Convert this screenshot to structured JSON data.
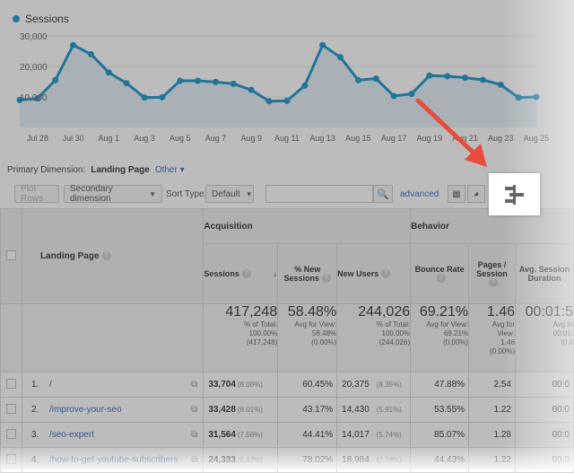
{
  "chart_data": {
    "type": "area",
    "series": [
      {
        "name": "Sessions",
        "values": [
          9000,
          9500,
          15500,
          27000,
          24000,
          18000,
          14500,
          9800,
          9900,
          15300,
          15300,
          14900,
          14300,
          12300,
          8600,
          8700,
          13700,
          27000,
          23000,
          15500,
          16000,
          10300,
          11000,
          17000,
          16800,
          16300,
          15600,
          14000,
          9800,
          10000
        ]
      }
    ],
    "x_ticks": [
      "Jul 28",
      "Jul 30",
      "Aug 1",
      "Aug 3",
      "Aug 5",
      "Aug 7",
      "Aug 9",
      "Aug 11",
      "Aug 13",
      "Aug 15",
      "Aug 17",
      "Aug 19",
      "Aug 21",
      "Aug 23",
      "Aug 25"
    ],
    "y_ticks": [
      "30,000",
      "20,000",
      "10,000"
    ],
    "ylim": [
      0,
      30000
    ],
    "color": "#058dc7"
  },
  "primary_dimension": {
    "label": "Primary Dimension:",
    "active": "Landing Page",
    "other": "Other"
  },
  "toolbar": {
    "plot_rows": "Plot Rows",
    "secondary_dimension": "Secondary dimension",
    "sort_type_label": "Sort Type:",
    "sort_type_value": "Default",
    "advanced": "advanced"
  },
  "table": {
    "groups": {
      "acquisition": "Acquisition",
      "behavior": "Behavior"
    },
    "headers": {
      "landing_page": "Landing Page",
      "sessions": "Sessions",
      "new_sessions_l1": "% New",
      "new_sessions_l2": "Sessions",
      "new_users": "New Users",
      "bounce_rate": "Bounce Rate",
      "pages_l1": "Pages /",
      "pages_l2": "Session",
      "duration_l1": "Avg. Session",
      "duration_l2": "Duration"
    },
    "totals": {
      "sessions": "417,248",
      "sessions_sub1": "% of Total:",
      "sessions_sub2": "100.00%",
      "sessions_sub3": "(417,248)",
      "new_sessions": "58.48%",
      "new_sessions_sub1": "Avg for View:",
      "new_sessions_sub2": "58.48%",
      "new_sessions_sub3": "(0.00%)",
      "new_users": "244,026",
      "new_users_sub1": "% of Total:",
      "new_users_sub2": "100.00%",
      "new_users_sub3": "(244,026)",
      "bounce": "69.21%",
      "bounce_sub1": "Avg for View:",
      "bounce_sub2": "69.21%",
      "bounce_sub3": "(0.00%)",
      "pages": "1.46",
      "pages_sub1": "Avg for",
      "pages_sub2": "View:",
      "pages_sub3": "1.46",
      "pages_sub4": "(0.00%)",
      "duration": "00:01:5",
      "duration_sub1": "Avg fo",
      "duration_sub2": "00:01:",
      "duration_sub3": "(0.0"
    },
    "rows": [
      {
        "idx": "1.",
        "page": "/",
        "sessions": "33,704",
        "sessions_pct": "(8.08%)",
        "new_sessions": "60.45%",
        "new_users": "20,375",
        "new_users_pct": "(8.35%)",
        "bounce": "47.88%",
        "pages": "2.54",
        "duration": "00:0"
      },
      {
        "idx": "2.",
        "page": "/improve-your-seo",
        "sessions": "33,428",
        "sessions_pct": "(8.01%)",
        "new_sessions": "43.17%",
        "new_users": "14,430",
        "new_users_pct": "(5.91%)",
        "bounce": "53.55%",
        "pages": "1.22",
        "duration": "00:0"
      },
      {
        "idx": "3.",
        "page": "/seo-expert",
        "sessions": "31,564",
        "sessions_pct": "(7.56%)",
        "new_sessions": "44.41%",
        "new_users": "14,017",
        "new_users_pct": "(5.74%)",
        "bounce": "85.07%",
        "pages": "1.28",
        "duration": "00:0"
      },
      {
        "idx": "4.",
        "page": "/how-to-get-youtube-subscribers",
        "sessions": "24,333",
        "sessions_pct": "(5.83%)",
        "new_sessions": "78.02%",
        "new_users": "18,984",
        "new_users_pct": "(7.78%)",
        "bounce": "44.43%",
        "pages": "1.22",
        "duration": "00:0"
      }
    ]
  }
}
